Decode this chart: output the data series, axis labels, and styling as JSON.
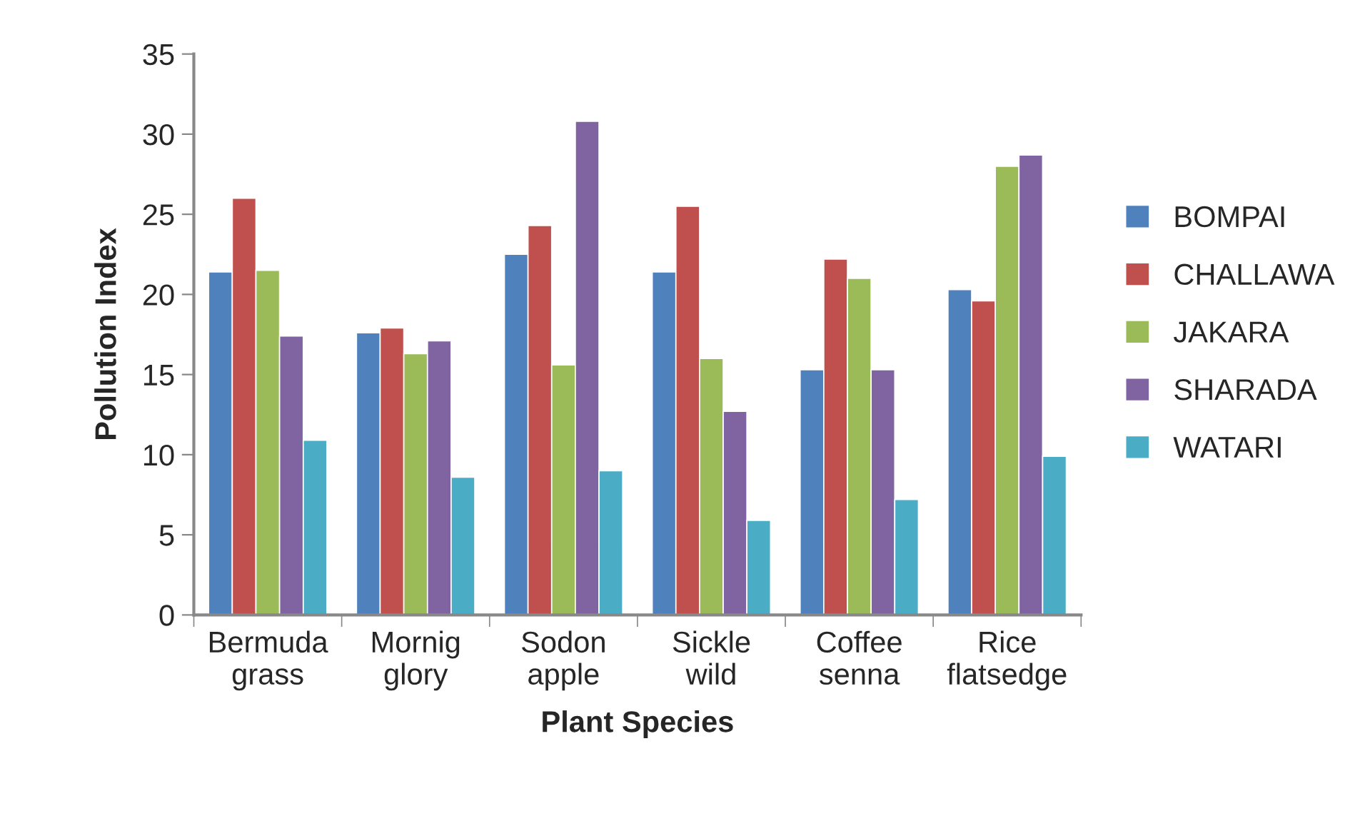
{
  "chart_data": {
    "type": "bar",
    "xlabel": "Plant Species",
    "ylabel": "Pollution Index",
    "categories": [
      "Bermuda\ngrass",
      "Mornig\nglory",
      "Sodon\napple",
      "Sickle\nwild",
      "Coffee\nsenna",
      "Rice\nflatsedge"
    ],
    "series": [
      {
        "name": "BOMPAI",
        "color": "#4f81bd",
        "values": [
          21.4,
          17.6,
          22.5,
          21.4,
          15.3,
          20.3
        ]
      },
      {
        "name": "CHALLAWA",
        "color": "#c0504d",
        "values": [
          26.0,
          17.9,
          24.3,
          25.5,
          22.2,
          19.6
        ]
      },
      {
        "name": "JAKARA",
        "color": "#9bbb59",
        "values": [
          21.5,
          16.3,
          15.6,
          16.0,
          21.0,
          28.0
        ]
      },
      {
        "name": "SHARADA",
        "color": "#8064a2",
        "values": [
          17.4,
          17.1,
          30.8,
          12.7,
          15.3,
          28.7
        ]
      },
      {
        "name": "WATARI",
        "color": "#4bacc6",
        "values": [
          10.9,
          8.6,
          9.0,
          5.9,
          7.2,
          9.9
        ]
      }
    ],
    "ylim": [
      0,
      35
    ],
    "yticks": [
      0,
      5,
      10,
      15,
      20,
      25,
      30,
      35
    ],
    "grid": false,
    "legend": "right"
  }
}
